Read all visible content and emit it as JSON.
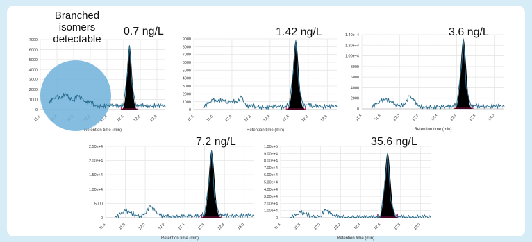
{
  "figure": {
    "background": "#d6ecf7",
    "panel_background": "#ffffff",
    "trace_color": "#2a6d8f",
    "peak_color": "#000000",
    "baseline_marker_color": "#c2185b",
    "highlight_color": "#6fb2d9",
    "annotation": "Branched\nisomers\ndetectable"
  },
  "chart_data": [
    {
      "type": "line",
      "title": "0.7 ng/L",
      "xlabel": "Retention time (min)",
      "xlim": [
        11.6,
        13.1
      ],
      "x_ticks": [
        11.6,
        11.8,
        12.0,
        12.2,
        12.4,
        12.6,
        12.8,
        13.0
      ],
      "x_tick_labels": [
        "11.6",
        "11.8",
        "12.0",
        "12.2",
        "12.4",
        "12.6",
        "12.8",
        "13.0"
      ],
      "ylim": [
        0,
        7000
      ],
      "y_ticks": [
        0,
        1000,
        2000,
        3000,
        4000,
        5000,
        6000,
        7000
      ],
      "y_tick_labels": [
        "0",
        "1000",
        "2000",
        "3000",
        "4000",
        "5000",
        "6000",
        "7000"
      ],
      "grid": true,
      "peak": {
        "x": 12.67,
        "height": 6400
      },
      "series": [
        {
          "x": [
            11.7,
            11.75,
            11.8,
            11.85,
            11.9,
            11.95,
            12.0,
            12.05,
            12.1,
            12.15,
            12.2,
            12.25,
            12.3,
            12.35,
            12.4,
            12.45,
            12.5,
            12.55,
            12.6,
            12.65,
            12.67,
            12.7,
            12.75,
            12.8,
            12.85,
            12.9,
            12.95,
            13.0,
            13.05,
            13.1
          ],
          "y": [
            650,
            1000,
            1300,
            1100,
            1600,
            1200,
            900,
            1400,
            1100,
            650,
            800,
            450,
            350,
            300,
            400,
            380,
            350,
            300,
            600,
            4000,
            6400,
            2500,
            300,
            350,
            400,
            380,
            350,
            400,
            380,
            300
          ]
        }
      ]
    },
    {
      "type": "line",
      "title": "1.42 ng/L",
      "xlabel": "Retention time (min)",
      "xlim": [
        11.6,
        13.1
      ],
      "x_ticks": [
        11.6,
        11.8,
        12.0,
        12.2,
        12.4,
        12.6,
        12.8,
        13.0
      ],
      "x_tick_labels": [
        "11.6",
        "11.8",
        "12.0",
        "12.2",
        "12.4",
        "12.6",
        "12.8",
        "13.0"
      ],
      "ylim": [
        0,
        9000
      ],
      "y_ticks": [
        0,
        1000,
        2000,
        3000,
        4000,
        5000,
        6000,
        7000,
        8000,
        9000
      ],
      "y_tick_labels": [
        "0",
        "1000",
        "2000",
        "3000",
        "4000",
        "5000",
        "6000",
        "7000",
        "8000",
        "9000"
      ],
      "grid": true,
      "peak": {
        "x": 12.67,
        "height": 8800
      },
      "series": [
        {
          "x": [
            11.7,
            11.75,
            11.8,
            11.85,
            11.9,
            11.95,
            12.0,
            12.05,
            12.1,
            12.15,
            12.2,
            12.25,
            12.3,
            12.35,
            12.4,
            12.45,
            12.5,
            12.55,
            12.6,
            12.65,
            12.67,
            12.7,
            12.75,
            12.8,
            12.85,
            12.9,
            12.95,
            13.0,
            13.05,
            13.1
          ],
          "y": [
            300,
            700,
            1200,
            1000,
            1300,
            900,
            1100,
            900,
            1600,
            400,
            500,
            400,
            350,
            300,
            350,
            400,
            350,
            300,
            700,
            5500,
            8800,
            3000,
            400,
            600,
            400,
            500,
            350,
            450,
            400,
            350
          ]
        }
      ]
    },
    {
      "type": "line",
      "title": "3.6 ng/L",
      "xlabel": "Retention time (min)",
      "xlim": [
        11.6,
        13.1
      ],
      "x_ticks": [
        11.6,
        11.8,
        12.0,
        12.2,
        12.4,
        12.6,
        12.8,
        13.0
      ],
      "x_tick_labels": [
        "11.6",
        "11.8",
        "12.0",
        "12.2",
        "12.4",
        "12.6",
        "12.8",
        "13.0"
      ],
      "ylim": [
        0,
        14000
      ],
      "y_ticks": [
        0,
        2000,
        4000,
        6000,
        8000,
        10000,
        12000,
        14000
      ],
      "y_tick_labels": [
        "0",
        "2000",
        "4000",
        "6000",
        "8000",
        "1.00e+4",
        "1.20e+4",
        "1.40e+4"
      ],
      "grid": true,
      "peak": {
        "x": 12.67,
        "height": 13200
      },
      "series": [
        {
          "x": [
            11.7,
            11.75,
            11.8,
            11.85,
            11.9,
            11.95,
            12.0,
            12.05,
            12.1,
            12.15,
            12.2,
            12.25,
            12.3,
            12.35,
            12.4,
            12.45,
            12.5,
            12.55,
            12.6,
            12.65,
            12.67,
            12.7,
            12.75,
            12.8,
            12.85,
            12.9,
            12.95,
            13.0,
            13.05,
            13.1
          ],
          "y": [
            300,
            800,
            1400,
            1800,
            1500,
            900,
            600,
            800,
            2400,
            1600,
            500,
            400,
            350,
            300,
            350,
            300,
            350,
            400,
            900,
            8000,
            13200,
            4000,
            500,
            600,
            500,
            550,
            500,
            600,
            450,
            400
          ]
        }
      ]
    },
    {
      "type": "line",
      "title": "7.2 ng/L",
      "xlabel": "Retention time (min)",
      "xlim": [
        11.6,
        13.1
      ],
      "x_ticks": [
        11.6,
        11.8,
        12.0,
        12.2,
        12.4,
        12.6,
        12.8,
        13.0
      ],
      "x_tick_labels": [
        "11.6",
        "11.8",
        "12.0",
        "12.2",
        "12.4",
        "12.6",
        "12.8",
        "13.0"
      ],
      "ylim": [
        0,
        25000
      ],
      "y_ticks": [
        0,
        5000,
        10000,
        15000,
        20000,
        25000
      ],
      "y_tick_labels": [
        "0",
        "5000",
        "1.00e+4",
        "1.50e+4",
        "2.00e+4",
        "2.50e+4"
      ],
      "grid": true,
      "peak": {
        "x": 12.67,
        "height": 23500
      },
      "series": [
        {
          "x": [
            11.7,
            11.75,
            11.8,
            11.85,
            11.9,
            11.95,
            12.0,
            12.05,
            12.1,
            12.15,
            12.2,
            12.25,
            12.3,
            12.35,
            12.4,
            12.45,
            12.5,
            12.55,
            12.6,
            12.65,
            12.67,
            12.7,
            12.75,
            12.8,
            12.85,
            12.9,
            12.95,
            13.0,
            13.05,
            13.1
          ],
          "y": [
            400,
            1200,
            2500,
            1800,
            1000,
            700,
            1500,
            4200,
            2200,
            700,
            500,
            450,
            400,
            350,
            400,
            350,
            400,
            500,
            1500,
            14000,
            23500,
            7000,
            700,
            800,
            700,
            800,
            700,
            750,
            700,
            600
          ]
        }
      ]
    },
    {
      "type": "line",
      "title": "35.6 ng/L",
      "xlabel": "Retention time (min)",
      "xlim": [
        11.6,
        13.1
      ],
      "x_ticks": [
        11.6,
        11.8,
        12.0,
        12.2,
        12.4,
        12.6,
        12.8,
        13.0
      ],
      "x_tick_labels": [
        "11.6",
        "11.8",
        "12.0",
        "12.2",
        "12.4",
        "12.6",
        "12.8",
        "13.0"
      ],
      "ylim": [
        0,
        100000
      ],
      "y_ticks": [
        0,
        10000,
        20000,
        30000,
        40000,
        50000,
        60000,
        70000,
        80000,
        90000,
        100000
      ],
      "y_tick_labels": [
        "0",
        "1.00e+4",
        "2.00e+4",
        "3.00e+4",
        "4.00e+4",
        "5.00e+4",
        "6.00e+4",
        "7.00e+4",
        "8.00e+4",
        "9.00e+4",
        "1.00e+5"
      ],
      "grid": true,
      "peak": {
        "x": 12.67,
        "height": 91000
      },
      "series": [
        {
          "x": [
            11.7,
            11.75,
            11.8,
            11.85,
            11.9,
            11.95,
            12.0,
            12.05,
            12.1,
            12.15,
            12.2,
            12.25,
            12.3,
            12.35,
            12.4,
            12.45,
            12.5,
            12.55,
            12.6,
            12.65,
            12.67,
            12.7,
            12.75,
            12.8,
            12.85,
            12.9,
            12.95,
            13.0,
            13.05,
            13.1
          ],
          "y": [
            600,
            3000,
            7500,
            5500,
            2500,
            1000,
            2500,
            11000,
            5000,
            1500,
            800,
            700,
            600,
            500,
            600,
            500,
            600,
            700,
            3000,
            55000,
            91000,
            25000,
            1500,
            1200,
            900,
            1000,
            900,
            1000,
            900,
            800
          ]
        }
      ]
    }
  ]
}
